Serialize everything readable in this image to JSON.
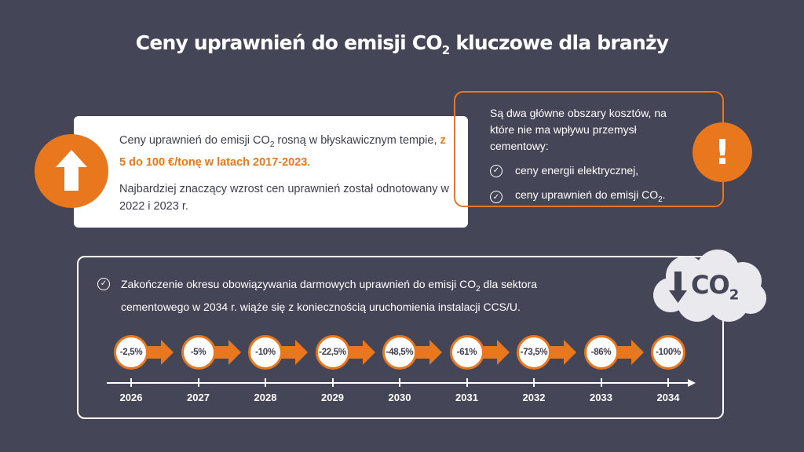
{
  "title": {
    "main": "Ceny uprawnień do emisji CO",
    "sub": "2",
    "rest": " kluczowe dla branży"
  },
  "card_left": {
    "p1_a": "Ceny uprawnień do emisji CO",
    "p1_sub": "2",
    "p1_b": " rosną w błyskawicznym tempie, ",
    "p1_highlight": "z 5 do 100 €/tonę w latach 2017-2023",
    "p1_end": ".",
    "p2": "Najbardziej znaczący wzrost cen uprawnień został odnotowany w 2022 i 2023 r."
  },
  "card_right": {
    "intro": "Są dwa główne obszary kosztów, na które nie ma wpływu przemysł cementowy:",
    "item1": "ceny energii elektrycznej,",
    "item2_a": "ceny uprawnień do emisji CO",
    "item2_sub": "2",
    "item2_end": ".",
    "icon_symbol": "!"
  },
  "bottom": {
    "text_a": "Zakończenie okresu obowiązywania darmowych uprawnień do emisji CO",
    "text_sub": "2",
    "text_b": " dla sektora cementowego w 2034 r. wiąże się z koniecznością uruchomienia instalacji CCS/U.",
    "cloud_label": "CO",
    "cloud_sub": "2"
  },
  "timeline": {
    "steps": [
      "-2,5%",
      "-5%",
      "-10%",
      "-22,5%",
      "-48,5%",
      "-61%",
      "-73,5%",
      "-86%",
      "-100%"
    ],
    "years": [
      "2026",
      "2027",
      "2028",
      "2029",
      "2030",
      "2031",
      "2032",
      "2033",
      "2034"
    ]
  },
  "colors": {
    "background": "#454558",
    "accent": "#e9771d",
    "text_dark": "#3d3d4f",
    "cloud": "#e9e9ee"
  },
  "icons": {
    "up": "arrow-up-icon",
    "alert": "exclamation-icon",
    "check": "check-circle-icon",
    "down": "arrow-down-icon",
    "cloud": "cloud-icon"
  }
}
